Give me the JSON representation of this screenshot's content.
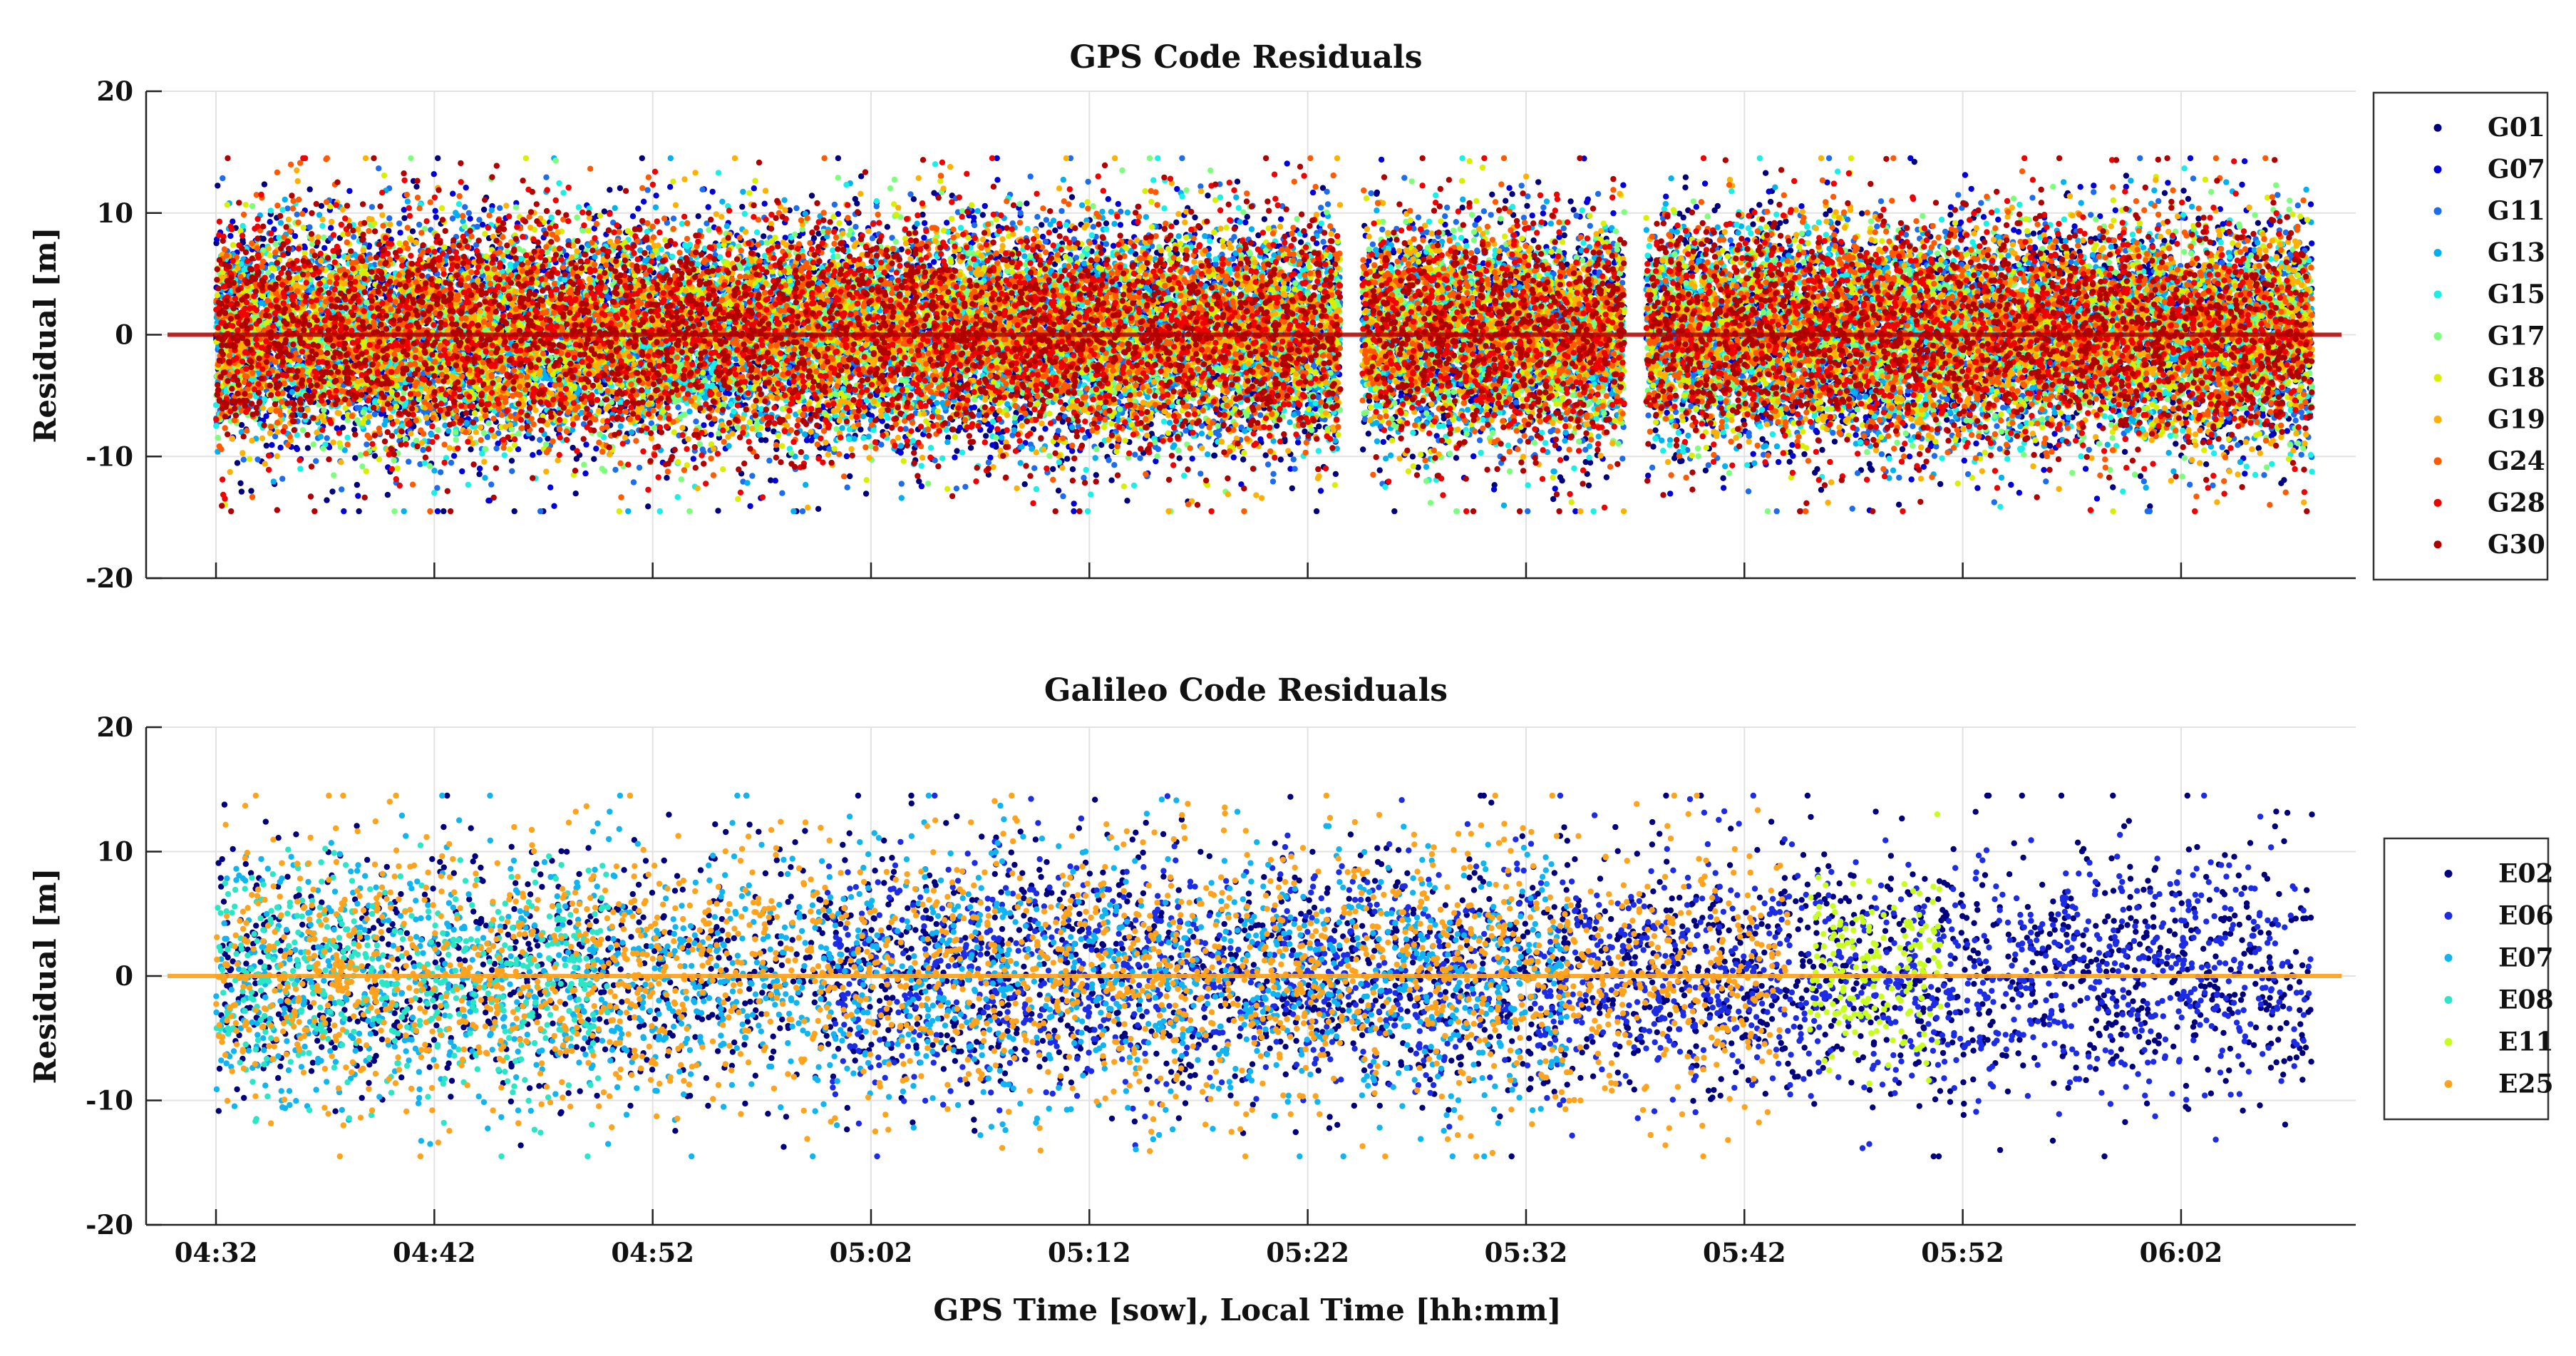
{
  "figure": {
    "xlabel": "GPS Time [sow], Local Time [hh:mm]",
    "x_tick_labels": [
      "04:32",
      "04:42",
      "04:52",
      "05:02",
      "05:12",
      "05:22",
      "05:32",
      "05:42",
      "05:52",
      "06:02"
    ]
  },
  "chart_data": [
    {
      "type": "scatter",
      "title": "GPS Code Residuals",
      "xlabel": "GPS Time [sow], Local Time [hh:mm]",
      "ylabel": "Residual [m]",
      "x_unit": "minutes after 04:32 local time",
      "xlim": [
        0,
        96
      ],
      "ylim": [
        -20,
        20
      ],
      "yticks": [
        -20,
        -10,
        0,
        10,
        20
      ],
      "grid": true,
      "legend_position": "right",
      "series": [
        {
          "name": "G01",
          "color": "#00007f",
          "coverage": [
            [
              0,
              96
            ]
          ],
          "spread": 4.2
        },
        {
          "name": "G07",
          "color": "#0000d8",
          "coverage": [
            [
              0,
              96
            ]
          ],
          "spread": 3.6
        },
        {
          "name": "G11",
          "color": "#1c6cf0",
          "coverage": [
            [
              0,
              96
            ]
          ],
          "spread": 3.8
        },
        {
          "name": "G13",
          "color": "#00b0f0",
          "coverage": [
            [
              0,
              96
            ]
          ],
          "spread": 3.4
        },
        {
          "name": "G15",
          "color": "#16f0e6",
          "coverage": [
            [
              0,
              96
            ]
          ],
          "spread": 3.2
        },
        {
          "name": "G17",
          "color": "#7cff7a",
          "coverage": [
            [
              0,
              96
            ]
          ],
          "spread": 3.0
        },
        {
          "name": "G18",
          "color": "#d8f000",
          "coverage": [
            [
              0,
              96
            ]
          ],
          "spread": 3.2
        },
        {
          "name": "G19",
          "color": "#ffb000",
          "coverage": [
            [
              0,
              96
            ]
          ],
          "spread": 3.6
        },
        {
          "name": "G24",
          "color": "#ff5a00",
          "coverage": [
            [
              0,
              96
            ]
          ],
          "spread": 3.8
        },
        {
          "name": "G28",
          "color": "#f00000",
          "coverage": [
            [
              0,
              96
            ]
          ],
          "spread": 4.0
        },
        {
          "name": "G30",
          "color": "#b00000",
          "coverage": [
            [
              0,
              96
            ]
          ],
          "spread": 4.2
        }
      ]
    },
    {
      "type": "scatter",
      "title": "Galileo Code Residuals",
      "xlabel": "GPS Time [sow], Local Time [hh:mm]",
      "ylabel": "Residual [m]",
      "x_unit": "minutes after 04:32 local time",
      "xlim": [
        0,
        96
      ],
      "ylim": [
        -20,
        20
      ],
      "yticks": [
        -20,
        -10,
        0,
        10,
        20
      ],
      "grid": true,
      "legend_position": "right",
      "series": [
        {
          "name": "E02",
          "color": "#00007f",
          "coverage": [
            [
              0,
              96
            ]
          ],
          "spread": 4.5
        },
        {
          "name": "E06",
          "color": "#1c2ce6",
          "coverage": [
            [
              28,
              96
            ]
          ],
          "spread": 3.8
        },
        {
          "name": "E07",
          "color": "#0fb4f0",
          "coverage": [
            [
              0,
              62
            ]
          ],
          "spread": 4.6
        },
        {
          "name": "E08",
          "color": "#2ae6c4",
          "coverage": [
            [
              0,
              18
            ]
          ],
          "spread": 4.2
        },
        {
          "name": "E11",
          "color": "#c6ff1e",
          "coverage": [
            [
              73,
              79
            ]
          ],
          "spread": 3.0
        },
        {
          "name": "E25",
          "color": "#ffa21c",
          "coverage": [
            [
              0,
              72
            ]
          ],
          "spread": 5.0
        }
      ]
    }
  ]
}
